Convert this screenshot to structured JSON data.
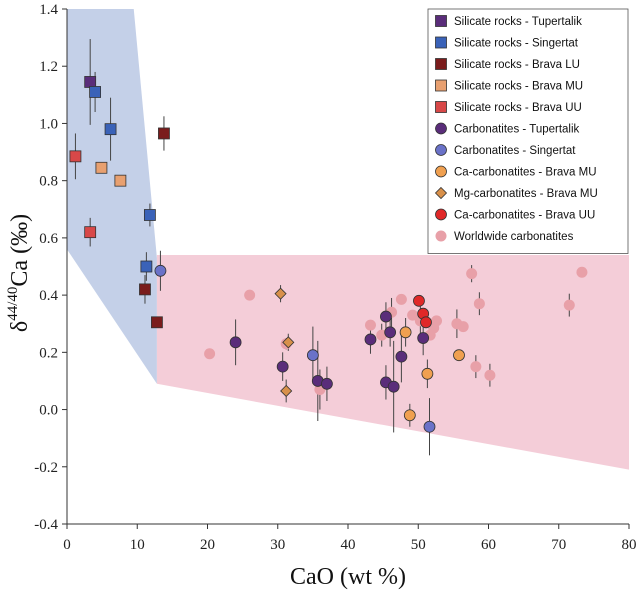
{
  "chart_data": {
    "type": "scatter",
    "xlabel": "CaO (wt %)",
    "ylabel_parts": {
      "delta": "δ",
      "sup": "44/40",
      "main": "Ca (‰)"
    },
    "xlim": [
      0,
      80
    ],
    "ylim": [
      -0.4,
      1.4
    ],
    "x_ticks": [
      "0",
      "10",
      "20",
      "30",
      "40",
      "50",
      "60",
      "70",
      "80"
    ],
    "y_ticks": [
      "-0.4",
      "-0.2",
      "0.0",
      "0.2",
      "0.4",
      "0.6",
      "0.8",
      "1.0",
      "1.2",
      "1.4"
    ],
    "grid": false,
    "legend_position": "top-right",
    "regions": [
      {
        "fill": "#c4d0e8",
        "points": [
          [
            0,
            1.4
          ],
          [
            9.5,
            1.4
          ],
          [
            12.8,
            0.53
          ],
          [
            12.8,
            0.09
          ],
          [
            0,
            0.56
          ]
        ]
      },
      {
        "fill": "#f4cdd8",
        "points": [
          [
            12.8,
            0.54
          ],
          [
            80,
            0.54
          ],
          [
            80,
            -0.21
          ],
          [
            12.8,
            0.09
          ]
        ]
      }
    ],
    "series": [
      {
        "name": "Silicate rocks - Tupertalik",
        "marker": "square",
        "color": "#5a2d7a",
        "points": [
          [
            3.3,
            1.145,
            0.15
          ]
        ]
      },
      {
        "name": "Silicate rocks - Singertat",
        "marker": "square",
        "color": "#3a62b8",
        "points": [
          [
            4.0,
            1.11,
            0.07
          ],
          [
            6.2,
            0.98,
            0.11
          ],
          [
            11.8,
            0.68,
            0.04
          ],
          [
            11.3,
            0.5,
            0.05
          ]
        ]
      },
      {
        "name": "Silicate rocks - Brava LU",
        "marker": "square",
        "color": "#7a1c1c",
        "points": [
          [
            13.8,
            0.965,
            0.06
          ],
          [
            11.1,
            0.42,
            0.05
          ],
          [
            12.8,
            0.305,
            0
          ]
        ]
      },
      {
        "name": "Silicate rocks - Brava MU",
        "marker": "square",
        "color": "#e8a070",
        "points": [
          [
            4.9,
            0.845,
            0
          ],
          [
            7.6,
            0.8,
            0
          ]
        ]
      },
      {
        "name": "Silicate rocks - Brava UU",
        "marker": "square",
        "color": "#d84848",
        "points": [
          [
            1.2,
            0.885,
            0.08
          ],
          [
            3.3,
            0.62,
            0.05
          ]
        ]
      },
      {
        "name": "Carbonatites - Tupertalik",
        "marker": "circle",
        "color": "#5a2d7a",
        "points": [
          [
            24.0,
            0.235,
            0.08
          ],
          [
            30.7,
            0.15,
            0.05
          ],
          [
            35.7,
            0.1,
            0.14
          ],
          [
            37.0,
            0.09,
            0.06
          ],
          [
            43.2,
            0.245,
            0.05
          ],
          [
            45.4,
            0.325,
            0.05
          ],
          [
            46.0,
            0.27,
            0.05
          ],
          [
            45.4,
            0.095,
            0.06
          ],
          [
            46.5,
            0.08,
            0.16
          ],
          [
            47.6,
            0.185,
            0.09
          ],
          [
            50.7,
            0.25,
            0.06
          ]
        ]
      },
      {
        "name": "Carbonatites - Singertat",
        "marker": "circle",
        "color": "#6a72c8",
        "points": [
          [
            13.3,
            0.485,
            0.07
          ],
          [
            35.0,
            0.19,
            0.1
          ],
          [
            51.6,
            -0.06,
            0.1
          ]
        ]
      },
      {
        "name": "Ca-carbonatites - Brava MU",
        "marker": "circle",
        "color": "#f0a050",
        "points": [
          [
            48.2,
            0.27,
            0.05
          ],
          [
            48.8,
            -0.02,
            0.04
          ],
          [
            51.3,
            0.125,
            0.05
          ],
          [
            55.8,
            0.19,
            0
          ]
        ]
      },
      {
        "name": "Mg-carbonatites - Brava MU",
        "marker": "diamond",
        "color": "#d8904a",
        "points": [
          [
            30.4,
            0.405,
            0.03
          ],
          [
            31.5,
            0.235,
            0.03
          ],
          [
            31.2,
            0.065,
            0.04
          ]
        ]
      },
      {
        "name": "Ca-carbonatites - Brava UU",
        "marker": "circle",
        "color": "#e02828",
        "points": [
          [
            50.1,
            0.38,
            0
          ],
          [
            50.7,
            0.335,
            0
          ],
          [
            51.1,
            0.305,
            0
          ]
        ]
      },
      {
        "name": "Worldwide carbonatites",
        "marker": "circle_small",
        "color": "#e8a0a8",
        "points": [
          [
            20.3,
            0.195,
            0
          ],
          [
            26.0,
            0.4,
            0
          ],
          [
            31.2,
            0.23,
            0.02
          ],
          [
            36.0,
            0.07,
            0.07
          ],
          [
            43.2,
            0.295,
            0
          ],
          [
            44.8,
            0.26,
            0.04
          ],
          [
            46.2,
            0.34,
            0.05
          ],
          [
            47.6,
            0.385,
            0
          ],
          [
            49.2,
            0.33,
            0
          ],
          [
            50.3,
            0.31,
            0.06
          ],
          [
            51.7,
            0.26,
            0
          ],
          [
            52.2,
            0.285,
            0
          ],
          [
            52.6,
            0.31,
            0
          ],
          [
            55.5,
            0.3,
            0.05
          ],
          [
            56.4,
            0.29,
            0
          ],
          [
            57.6,
            0.475,
            0.03
          ],
          [
            58.2,
            0.15,
            0.04
          ],
          [
            58.7,
            0.37,
            0.04
          ],
          [
            60.2,
            0.12,
            0.04
          ],
          [
            71.5,
            0.365,
            0.04
          ],
          [
            73.3,
            0.48,
            0
          ]
        ]
      }
    ]
  }
}
